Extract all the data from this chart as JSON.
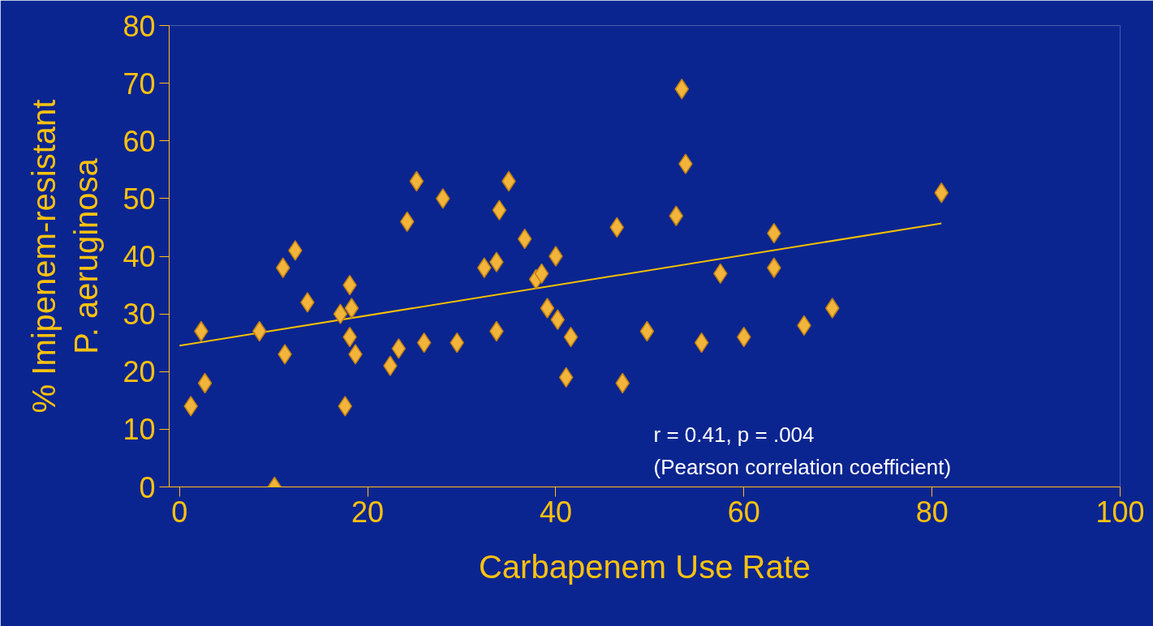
{
  "chart_data": {
    "type": "scatter",
    "xlabel": "Carbapenem Use Rate",
    "ylabel": "% Imipenem-resistant\nP. aeruginosa",
    "xlim": [
      -1.1,
      100
    ],
    "ylim": [
      0,
      80
    ],
    "xticks": [
      0,
      20,
      40,
      60,
      80,
      100
    ],
    "yticks": [
      0,
      10,
      20,
      30,
      40,
      50,
      60,
      70,
      80
    ],
    "grid": false,
    "annotations": [
      "r = 0.41, p = .004",
      "(Pearson correlation coefficient)"
    ],
    "series": [
      {
        "color": "#f2b43a",
        "marker": "diamond",
        "x": [
          1.2,
          2.3,
          2.7,
          8.5,
          10.1,
          11,
          11.2,
          12.3,
          13.6,
          17.1,
          17.6,
          18.1,
          18.3,
          18.1,
          18.7,
          22.4,
          23.3,
          24.2,
          25.2,
          26,
          28,
          29.5,
          32.4,
          33.7,
          33.7,
          34,
          35,
          36.7,
          37.9,
          38.5,
          39.1,
          40,
          40.2,
          41.1,
          41.6,
          46.5,
          47.1,
          49.7,
          52.8,
          53.4,
          53.8,
          55.5,
          57.5,
          60,
          63.2,
          63.2,
          66.4,
          69.4,
          81
        ],
        "values": [
          14,
          27,
          18,
          27,
          0,
          38,
          23,
          41,
          32,
          30,
          14,
          35,
          31,
          26,
          23,
          21,
          24,
          46,
          53,
          25,
          50,
          25,
          38,
          39,
          27,
          48,
          53,
          43,
          36,
          37,
          31,
          40,
          29,
          19,
          26,
          45,
          18,
          27,
          47,
          69,
          56,
          25,
          37,
          26,
          44,
          38,
          28,
          31,
          51
        ]
      },
      {
        "type": "line",
        "color": "#f5c000",
        "marker": "none",
        "x": [
          0,
          81
        ],
        "values": [
          24.5,
          45.7
        ]
      }
    ]
  }
}
